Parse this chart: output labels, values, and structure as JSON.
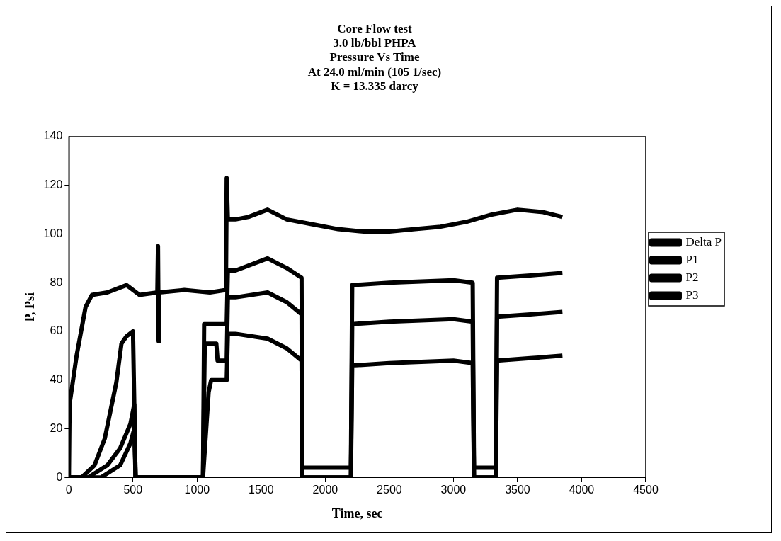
{
  "chart_data": {
    "type": "line",
    "title": "Core Flow test\n3.0 lb/bbl PHPA\nPressure Vs Time\nAt 24.0 ml/min (105 1/sec)\nK = 13.335 darcy",
    "xlabel": "Time, sec",
    "ylabel": "P, Psi",
    "xlim": [
      0,
      4500
    ],
    "xticks": [
      0,
      500,
      1000,
      1500,
      2000,
      2500,
      3000,
      3500,
      4000,
      4500
    ],
    "ylim": [
      0,
      140
    ],
    "yticks": [
      0,
      20,
      40,
      60,
      80,
      100,
      120,
      140
    ],
    "grid": false,
    "legend": "right",
    "marker": "none",
    "line_style": "solid",
    "series": [
      {
        "name": "Delta P",
        "color": "#000000",
        "x": [
          0,
          5,
          60,
          130,
          180,
          300,
          450,
          550,
          690,
          695,
          700,
          705,
          900,
          1100,
          1225,
          1231,
          1240,
          1300,
          1400,
          1550,
          1700,
          1900,
          2100,
          2300,
          2500,
          2700,
          2900,
          3100,
          3300,
          3500,
          3700,
          3850
        ],
        "values": [
          0,
          30,
          50,
          70,
          75,
          76,
          79,
          75,
          76,
          95,
          56,
          76,
          77,
          76,
          77,
          123,
          106,
          106,
          107,
          110,
          106,
          104,
          102,
          101,
          101,
          102,
          103,
          105,
          108,
          110,
          109,
          107
        ]
      },
      {
        "name": "P1",
        "color": "#000000",
        "x": [
          0,
          100,
          200,
          280,
          370,
          410,
          450,
          500,
          520,
          1046,
          1055,
          1231,
          1240,
          1300,
          1550,
          1700,
          1815,
          1820,
          2200,
          2210,
          2500,
          3000,
          3150,
          3160,
          3330,
          3340,
          3600,
          3850
        ],
        "values": [
          0,
          0,
          5,
          16,
          39,
          55,
          58,
          60,
          0,
          0,
          63,
          63,
          85,
          85,
          90,
          86,
          82,
          4,
          4,
          79,
          80,
          81,
          80,
          4,
          4,
          82,
          83,
          84
        ]
      },
      {
        "name": "P2",
        "color": "#000000",
        "x": [
          0,
          150,
          300,
          400,
          480,
          510,
          520,
          1046,
          1060,
          1150,
          1160,
          1231,
          1240,
          1300,
          1550,
          1700,
          1815,
          1820,
          2200,
          2210,
          2500,
          3000,
          3150,
          3160,
          3330,
          3340,
          3600,
          3850
        ],
        "values": [
          0,
          0,
          5,
          12,
          22,
          30,
          0,
          0,
          55,
          55,
          48,
          48,
          74,
          74,
          76,
          72,
          67,
          0,
          0,
          63,
          64,
          65,
          64,
          0,
          0,
          66,
          67,
          68
        ]
      },
      {
        "name": "P3",
        "color": "#000000",
        "x": [
          0,
          250,
          400,
          480,
          510,
          520,
          1046,
          1090,
          1110,
          1231,
          1240,
          1300,
          1550,
          1700,
          1815,
          1820,
          2200,
          2210,
          2500,
          3000,
          3150,
          3160,
          3330,
          3340,
          3600,
          3850
        ],
        "values": [
          0,
          0,
          5,
          14,
          20,
          0,
          0,
          35,
          40,
          40,
          59,
          59,
          57,
          53,
          48,
          0,
          0,
          46,
          47,
          48,
          47,
          0,
          0,
          48,
          49,
          50
        ]
      }
    ]
  }
}
